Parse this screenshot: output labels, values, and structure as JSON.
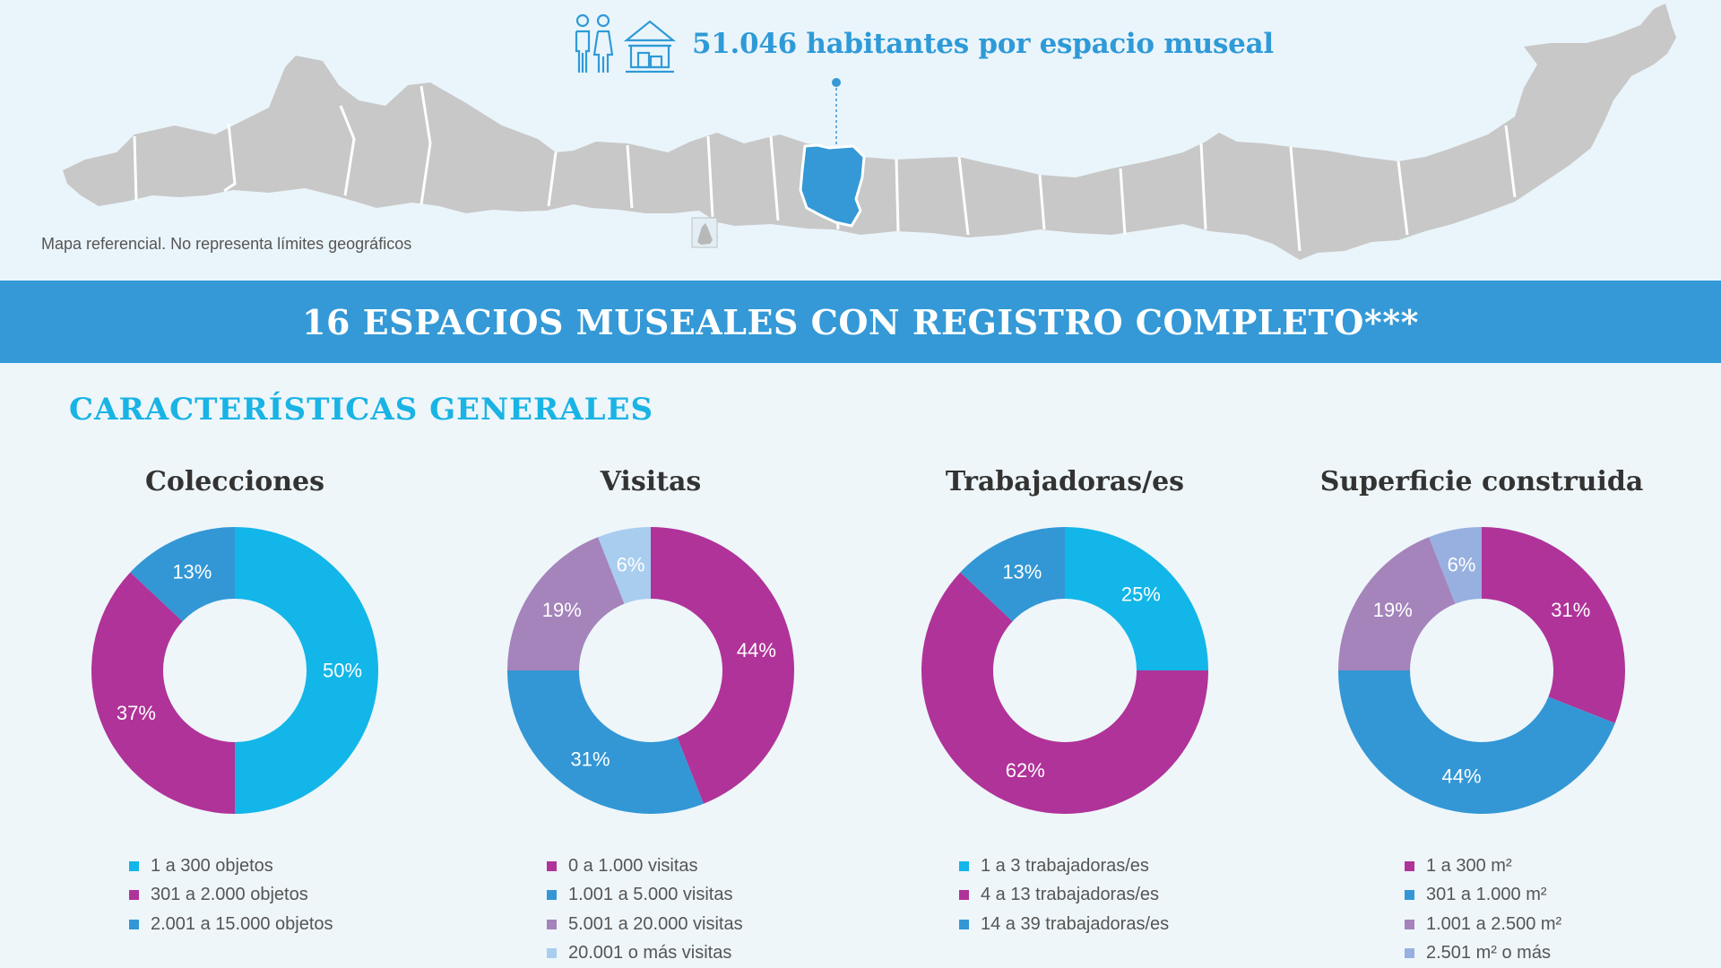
{
  "header": {
    "habitantes_text": "51.046 habitantes por espacio museal",
    "map_note": "Mapa referencial. No representa límites geográficos",
    "icons": [
      "people-icon",
      "museum-icon"
    ]
  },
  "banner": {
    "text": "16 ESPACIOS MUSEALES CON REGISTRO COMPLETO***"
  },
  "section": {
    "title": "CARACTERÍSTICAS GENERALES"
  },
  "colors": {
    "cyan": "#12b6e8",
    "magenta": "#b03399",
    "blue": "#3397d5",
    "lilac": "#a484bb",
    "lightblue": "#a9cdee",
    "periwinkle": "#97b0e0",
    "map_gray": "#c8c8c8",
    "map_highlight": "#3499d6"
  },
  "chart_data": [
    {
      "type": "pie",
      "title": "Colecciones",
      "slices": [
        {
          "label": "1 a 300 objetos",
          "value": 50,
          "display": "50%",
          "color": "#12b6e8"
        },
        {
          "label": "301 a 2.000 objetos",
          "value": 37,
          "display": "37%",
          "color": "#b03399"
        },
        {
          "label": "2.001 a 15.000 objetos",
          "value": 13,
          "display": "13%",
          "color": "#3397d5"
        }
      ]
    },
    {
      "type": "pie",
      "title": "Visitas",
      "slices": [
        {
          "label": "0 a 1.000 visitas",
          "value": 44,
          "display": "44%",
          "color": "#b03399"
        },
        {
          "label": "1.001 a 5.000 visitas",
          "value": 31,
          "display": "31%",
          "color": "#3397d5"
        },
        {
          "label": "5.001 a 20.000 visitas",
          "value": 19,
          "display": "19%",
          "color": "#a484bb"
        },
        {
          "label": "20.001 o más visitas",
          "value": 6,
          "display": "6%",
          "color": "#a9cdee"
        }
      ]
    },
    {
      "type": "pie",
      "title": "Trabajadoras/es",
      "slices": [
        {
          "label": "1 a 3 trabajadoras/es",
          "value": 25,
          "display": "25%",
          "color": "#12b6e8"
        },
        {
          "label": "4 a 13 trabajadoras/es",
          "value": 62,
          "display": "62%",
          "color": "#b03399"
        },
        {
          "label": "14 a 39 trabajadoras/es",
          "value": 13,
          "display": "13%",
          "color": "#3397d5"
        }
      ]
    },
    {
      "type": "pie",
      "title": "Superficie construida",
      "slices": [
        {
          "label": "1 a 300 m²",
          "value": 31,
          "display": "31%",
          "color": "#b03399"
        },
        {
          "label": "301 a 1.000 m²",
          "value": 44,
          "display": "44%",
          "color": "#3397d5"
        },
        {
          "label": "1.001 a 2.500 m²",
          "value": 19,
          "display": "19%",
          "color": "#a484bb"
        },
        {
          "label": "2.501 m² o más",
          "value": 6,
          "display": "6%",
          "color": "#97b0e0"
        }
      ]
    }
  ]
}
